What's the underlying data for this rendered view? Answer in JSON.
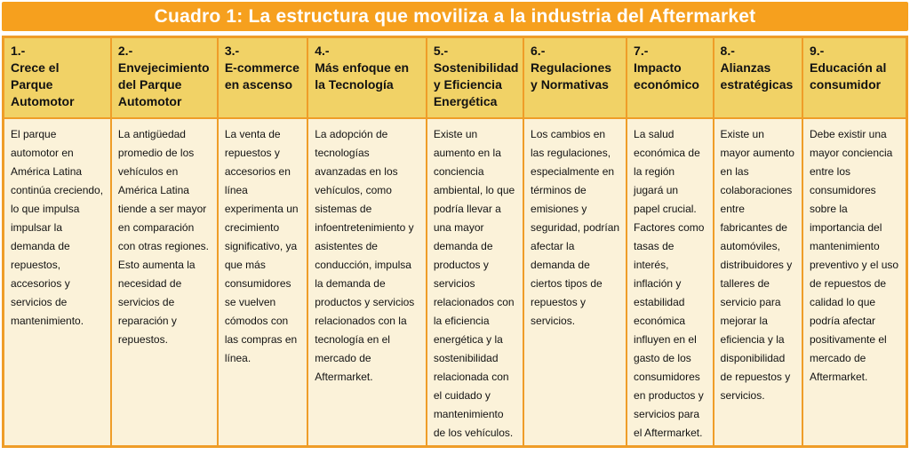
{
  "title": "Cuadro 1: La estructura que moviliza a la industria del Aftermarket",
  "colors": {
    "accent_orange": "#F6A01E",
    "border_orange": "#EF9D28",
    "header_gold": "#F1D266",
    "body_cream": "#FBF2D9",
    "title_text": "#FFFFFF",
    "cell_text": "#121212"
  },
  "table": {
    "columns": [
      {
        "number": "1.-",
        "heading": "Crece el Parque Automotor",
        "body": "El parque automotor en América Latina continúa creciendo, lo que impulsa impulsar la demanda de repuestos, accesorios y servicios de mantenimiento."
      },
      {
        "number": "2.-",
        "heading": "Envejecimiento del Parque Automotor",
        "body": "La antigüedad promedio de los vehículos en América Latina tiende a ser mayor en comparación con otras regiones. Esto aumenta la necesidad de servicios de reparación y repuestos."
      },
      {
        "number": "3.-",
        "heading": "E-commerce en ascenso",
        "body": "La venta de repuestos y accesorios en línea experimenta un crecimiento significativo, ya que más consumidores se vuelven cómodos con las compras en línea."
      },
      {
        "number": "4.-",
        "heading": "Más enfoque en la Tecnología",
        "body": "La adopción de tecnologías avanzadas en los vehículos, como sistemas de infoentretenimiento y asistentes de conducción, impulsa la demanda de productos y servicios relacionados con la tecnología en el mercado de Aftermarket."
      },
      {
        "number": "5.-",
        "heading": "Sostenibilidad y Eficiencia Energética",
        "body": "Existe un aumento en la conciencia ambiental, lo que podría llevar a una mayor demanda de productos y servicios relacionados con la eficiencia energética y la sostenibilidad relacionada con el cuidado y mantenimiento de los vehículos."
      },
      {
        "number": "6.-",
        "heading": "Regulaciones y Normativas",
        "body": "Los cambios en las regulaciones, especialmente en términos de emisiones y seguridad, podrían afectar la demanda de ciertos tipos de repuestos y servicios."
      },
      {
        "number": "7.-",
        "heading": "Impacto económico",
        "body": "La salud económica de la región jugará un papel crucial. Factores como tasas de interés, inflación y estabilidad económica influyen en el gasto de los consumidores en productos y servicios para el Aftermarket."
      },
      {
        "number": "8.-",
        "heading": "Alianzas estratégicas",
        "body": "Existe un mayor aumento en las colaboraciones entre fabricantes de automóviles, distribuidores y talleres de servicio para mejorar la eficiencia y la disponibilidad de repuestos y servicios."
      },
      {
        "number": "9.-",
        "heading": "Educación al consumidor",
        "body": "Debe existir una mayor conciencia entre los consumidores sobre la importancia del mantenimiento preventivo y el uso de repuestos de calidad lo que podría afectar positivamente el mercado de Aftermarket."
      }
    ]
  }
}
